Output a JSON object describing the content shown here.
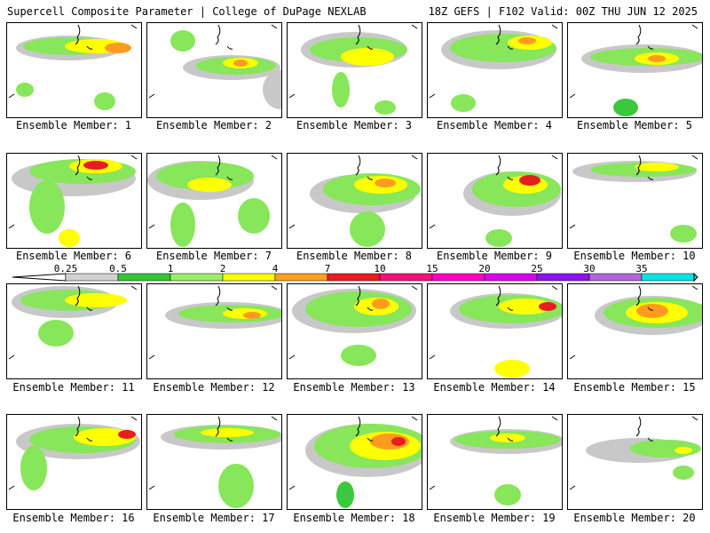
{
  "header": {
    "left_title": "Supercell Composite Parameter | College of DuPage NEXLAB",
    "right_title": "18Z GEFS | F102 Valid: 00Z THU JUN 12 2025"
  },
  "colors": {
    "gray": "#c8c8c8",
    "light_green": "#87e65a",
    "green": "#3cc83c",
    "yellow": "#ffff00",
    "orange": "#ff9b1e",
    "red": "#e61e1e",
    "coast": "#000000"
  },
  "legend": {
    "ticks": [
      "0.25",
      "0.5",
      "1",
      "2",
      "4",
      "7",
      "10",
      "15",
      "20",
      "25",
      "30",
      "35"
    ],
    "colors": [
      "#d2d2d2",
      "#32c832",
      "#96f064",
      "#ffff00",
      "#ffa01e",
      "#e61e1e",
      "#f0147a",
      "#ff00c8",
      "#dc00f0",
      "#8c14f0",
      "#b464dc",
      "#00e6e6"
    ]
  },
  "panels": [
    {
      "label": "Ensemble Member: 1"
    },
    {
      "label": "Ensemble Member: 2"
    },
    {
      "label": "Ensemble Member: 3"
    },
    {
      "label": "Ensemble Member: 4"
    },
    {
      "label": "Ensemble Member: 5"
    },
    {
      "label": "Ensemble Member: 6"
    },
    {
      "label": "Ensemble Member: 7"
    },
    {
      "label": "Ensemble Member: 8"
    },
    {
      "label": "Ensemble Member: 9"
    },
    {
      "label": "Ensemble Member: 10"
    },
    {
      "label": "Ensemble Member: 11"
    },
    {
      "label": "Ensemble Member: 12"
    },
    {
      "label": "Ensemble Member: 13"
    },
    {
      "label": "Ensemble Member: 14"
    },
    {
      "label": "Ensemble Member: 15"
    },
    {
      "label": "Ensemble Member: 16"
    },
    {
      "label": "Ensemble Member: 17"
    },
    {
      "label": "Ensemble Member: 18"
    },
    {
      "label": "Ensemble Member: 19"
    },
    {
      "label": "Ensemble Member: 20"
    }
  ]
}
